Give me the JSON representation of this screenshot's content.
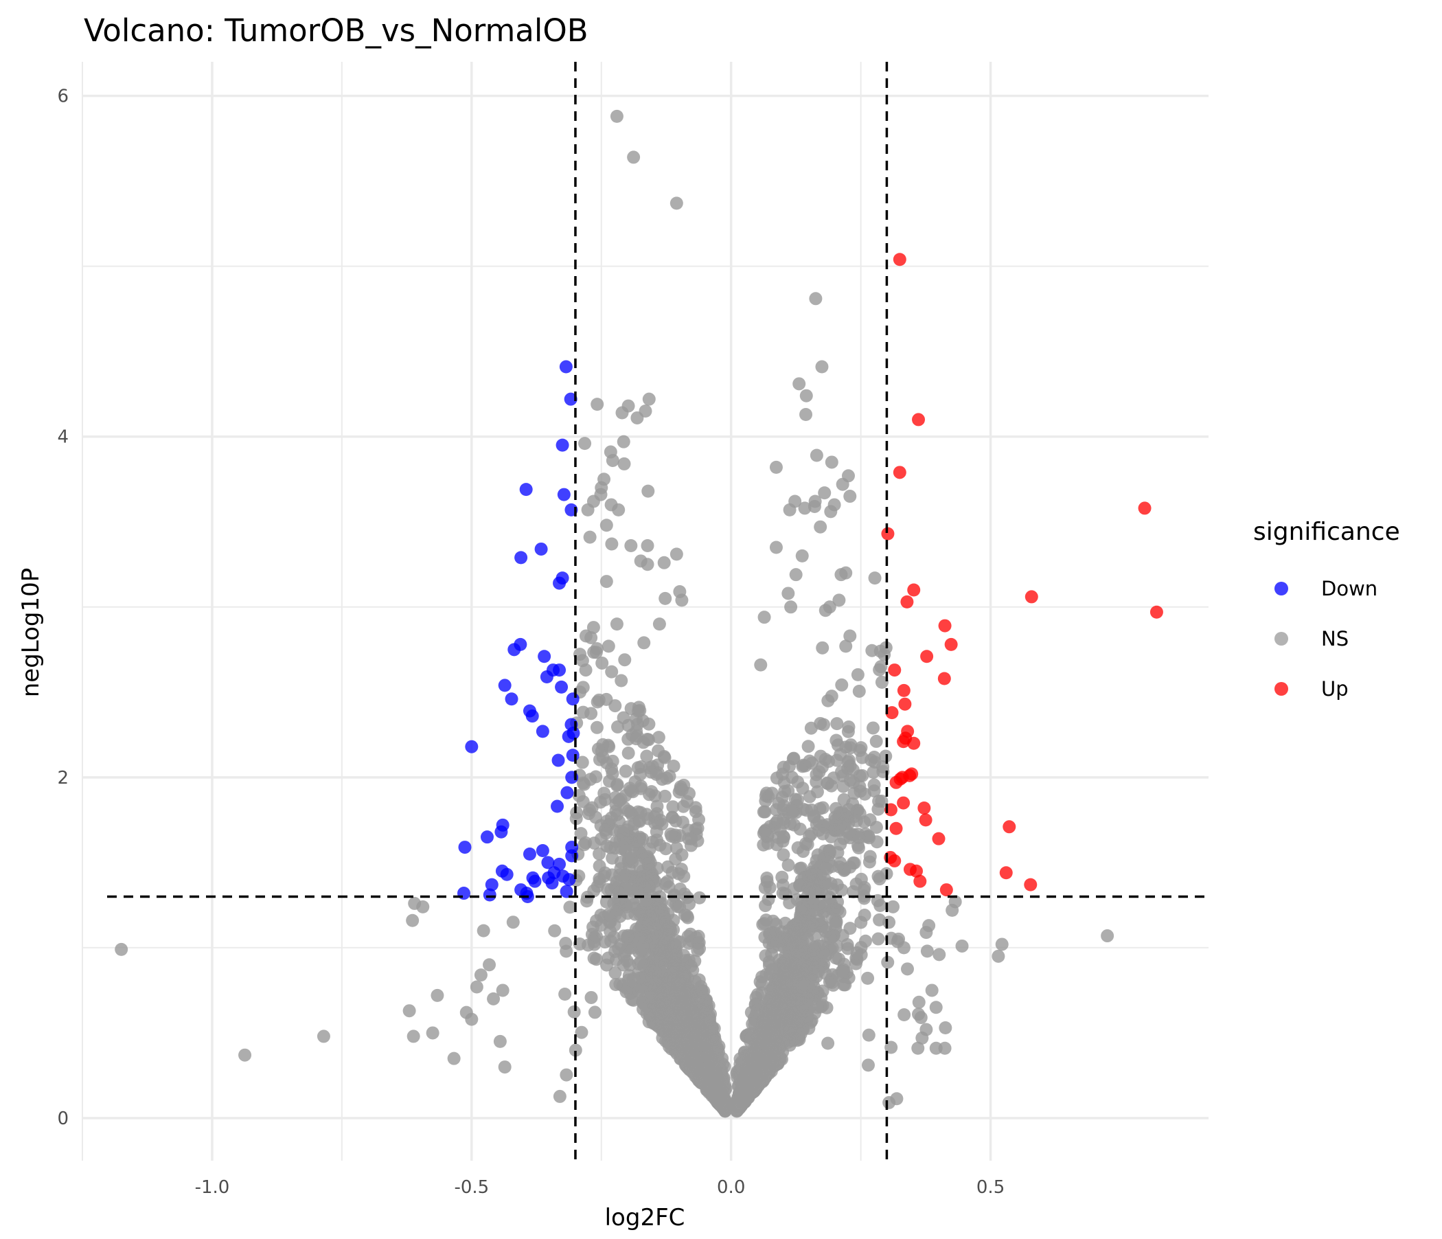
{
  "chart_data": {
    "type": "scatter",
    "title": "Volcano: TumorOB_vs_NormalOB",
    "xlabel": "log2FC",
    "ylabel": "negLog10P",
    "xlim": [
      -1.25,
      0.92
    ],
    "ylim": [
      -0.25,
      6.2
    ],
    "x_ticks": [
      -1.0,
      -0.5,
      0.0,
      0.5
    ],
    "x_tick_labels": [
      "-1.0",
      "-0.5",
      "0.0",
      "0.5"
    ],
    "y_ticks": [
      0,
      2,
      4,
      6
    ],
    "y_tick_labels": [
      "0",
      "2",
      "4",
      "6"
    ],
    "grid": true,
    "thresholds": {
      "log2FC": [
        -0.3,
        0.3
      ],
      "negLog10P": 1.3
    },
    "legend": {
      "title": "significance",
      "position": "right",
      "entries": [
        {
          "label": "Down",
          "color": "#0000ff"
        },
        {
          "label": "NS",
          "color": "#999999"
        },
        {
          "label": "Up",
          "color": "#ff0000"
        }
      ]
    },
    "series": [
      {
        "name": "Down",
        "color": "#0000ff",
        "points": [
          [
            -0.318,
            4.41
          ],
          [
            -0.309,
            4.22
          ],
          [
            -0.325,
            3.95
          ],
          [
            -0.395,
            3.69
          ],
          [
            -0.322,
            3.66
          ],
          [
            -0.308,
            3.57
          ],
          [
            -0.366,
            3.34
          ],
          [
            -0.405,
            3.29
          ],
          [
            -0.325,
            3.17
          ],
          [
            -0.331,
            3.14
          ],
          [
            -0.406,
            2.78
          ],
          [
            -0.418,
            2.75
          ],
          [
            -0.36,
            2.71
          ],
          [
            -0.343,
            2.63
          ],
          [
            -0.331,
            2.63
          ],
          [
            -0.355,
            2.59
          ],
          [
            -0.436,
            2.54
          ],
          [
            -0.327,
            2.53
          ],
          [
            -0.423,
            2.46
          ],
          [
            -0.305,
            2.46
          ],
          [
            -0.388,
            2.39
          ],
          [
            -0.383,
            2.36
          ],
          [
            -0.308,
            2.31
          ],
          [
            -0.304,
            2.26
          ],
          [
            -0.363,
            2.27
          ],
          [
            -0.313,
            2.24
          ],
          [
            -0.5,
            2.18
          ],
          [
            -0.305,
            2.13
          ],
          [
            -0.333,
            2.1
          ],
          [
            -0.307,
            2.0
          ],
          [
            -0.316,
            1.91
          ],
          [
            -0.335,
            1.83
          ],
          [
            -0.44,
            1.72
          ],
          [
            -0.443,
            1.68
          ],
          [
            -0.47,
            1.65
          ],
          [
            -0.513,
            1.59
          ],
          [
            -0.307,
            1.59
          ],
          [
            -0.363,
            1.57
          ],
          [
            -0.388,
            1.55
          ],
          [
            -0.307,
            1.54
          ],
          [
            -0.353,
            1.5
          ],
          [
            -0.331,
            1.49
          ],
          [
            -0.441,
            1.45
          ],
          [
            -0.432,
            1.43
          ],
          [
            -0.341,
            1.44
          ],
          [
            -0.324,
            1.42
          ],
          [
            -0.382,
            1.41
          ],
          [
            -0.352,
            1.41
          ],
          [
            -0.312,
            1.4
          ],
          [
            -0.378,
            1.39
          ],
          [
            -0.345,
            1.38
          ],
          [
            -0.461,
            1.37
          ],
          [
            -0.405,
            1.34
          ],
          [
            -0.394,
            1.32
          ],
          [
            -0.317,
            1.33
          ],
          [
            -0.465,
            1.31
          ],
          [
            -0.515,
            1.32
          ],
          [
            -0.392,
            1.3
          ]
        ]
      },
      {
        "name": "Up",
        "color": "#ff0000",
        "points": [
          [
            0.325,
            5.04
          ],
          [
            0.361,
            4.1
          ],
          [
            0.325,
            3.79
          ],
          [
            0.797,
            3.58
          ],
          [
            0.302,
            3.43
          ],
          [
            0.579,
            3.06
          ],
          [
            0.352,
            3.1
          ],
          [
            0.339,
            3.03
          ],
          [
            0.82,
            2.97
          ],
          [
            0.412,
            2.89
          ],
          [
            0.424,
            2.78
          ],
          [
            0.377,
            2.71
          ],
          [
            0.315,
            2.63
          ],
          [
            0.411,
            2.58
          ],
          [
            0.333,
            2.51
          ],
          [
            0.335,
            2.43
          ],
          [
            0.31,
            2.38
          ],
          [
            0.34,
            2.27
          ],
          [
            0.336,
            2.23
          ],
          [
            0.332,
            2.21
          ],
          [
            0.352,
            2.2
          ],
          [
            0.348,
            2.02
          ],
          [
            0.344,
            2.01
          ],
          [
            0.33,
            2.0
          ],
          [
            0.326,
            1.99
          ],
          [
            0.318,
            1.97
          ],
          [
            0.332,
            1.85
          ],
          [
            0.372,
            1.82
          ],
          [
            0.308,
            1.81
          ],
          [
            0.375,
            1.75
          ],
          [
            0.536,
            1.71
          ],
          [
            0.318,
            1.7
          ],
          [
            0.4,
            1.64
          ],
          [
            0.307,
            1.53
          ],
          [
            0.315,
            1.51
          ],
          [
            0.345,
            1.46
          ],
          [
            0.357,
            1.45
          ],
          [
            0.53,
            1.44
          ],
          [
            0.364,
            1.39
          ],
          [
            0.577,
            1.37
          ],
          [
            0.415,
            1.34
          ]
        ]
      },
      {
        "name": "NS",
        "color": "#999999",
        "notable_points": [
          [
            -0.22,
            5.88
          ],
          [
            -0.188,
            5.64
          ],
          [
            -0.105,
            5.37
          ],
          [
            0.163,
            4.81
          ],
          [
            0.175,
            4.41
          ],
          [
            0.131,
            4.31
          ],
          [
            0.145,
            4.24
          ],
          [
            -0.158,
            4.22
          ],
          [
            -0.258,
            4.19
          ],
          [
            -0.198,
            4.18
          ],
          [
            -0.21,
            4.14
          ],
          [
            -0.165,
            4.15
          ],
          [
            -0.181,
            4.11
          ],
          [
            0.144,
            4.13
          ],
          [
            -0.282,
            3.96
          ],
          [
            -0.207,
            3.97
          ],
          [
            -0.232,
            3.91
          ],
          [
            0.165,
            3.89
          ],
          [
            -0.228,
            3.86
          ],
          [
            -0.206,
            3.84
          ],
          [
            0.194,
            3.85
          ],
          [
            0.087,
            3.82
          ],
          [
            0.226,
            3.77
          ],
          [
            -0.245,
            3.75
          ],
          [
            0.215,
            3.72
          ],
          [
            -0.25,
            3.7
          ],
          [
            -0.16,
            3.68
          ],
          [
            0.229,
            3.65
          ],
          [
            -0.251,
            3.66
          ],
          [
            0.18,
            3.67
          ],
          [
            -0.265,
            3.62
          ],
          [
            0.162,
            3.62
          ],
          [
            0.123,
            3.62
          ],
          [
            -0.231,
            3.6
          ],
          [
            0.199,
            3.6
          ],
          [
            -0.276,
            3.57
          ],
          [
            -0.217,
            3.57
          ],
          [
            0.161,
            3.59
          ],
          [
            0.142,
            3.58
          ],
          [
            0.113,
            3.57
          ],
          [
            0.192,
            3.56
          ],
          [
            -0.24,
            3.48
          ],
          [
            0.172,
            3.47
          ],
          [
            -0.272,
            3.41
          ],
          [
            -0.23,
            3.37
          ],
          [
            -0.161,
            3.36
          ],
          [
            -0.193,
            3.36
          ],
          [
            0.087,
            3.35
          ],
          [
            -0.105,
            3.31
          ],
          [
            0.137,
            3.3
          ],
          [
            -0.174,
            3.27
          ],
          [
            -0.129,
            3.26
          ],
          [
            -0.161,
            3.25
          ],
          [
            0.221,
            3.2
          ],
          [
            0.212,
            3.19
          ],
          [
            0.125,
            3.19
          ],
          [
            -0.24,
            3.15
          ],
          [
            0.277,
            3.17
          ],
          [
            -0.099,
            3.09
          ],
          [
            -0.127,
            3.05
          ],
          [
            0.11,
            3.08
          ],
          [
            0.208,
            3.04
          ],
          [
            -0.095,
            3.04
          ],
          [
            0.115,
            3.0
          ],
          [
            0.19,
            3.0
          ],
          [
            0.182,
            2.98
          ],
          [
            -0.265,
            2.88
          ],
          [
            -0.22,
            2.9
          ],
          [
            -0.138,
            2.9
          ],
          [
            0.064,
            2.94
          ],
          [
            0.229,
            2.83
          ],
          [
            -0.27,
            2.82
          ],
          [
            -0.168,
            2.79
          ],
          [
            -0.236,
            2.77
          ],
          [
            0.221,
            2.77
          ],
          [
            0.176,
            2.76
          ],
          [
            -0.28,
            2.63
          ],
          [
            -0.205,
            2.69
          ],
          [
            0.295,
            2.72
          ],
          [
            0.057,
            2.66
          ],
          [
            -0.61,
            1.26
          ],
          [
            -0.594,
            1.24
          ],
          [
            -0.614,
            1.16
          ],
          [
            -0.477,
            1.1
          ],
          [
            -0.42,
            1.15
          ],
          [
            -1.175,
            0.99
          ],
          [
            -0.466,
            0.9
          ],
          [
            -0.482,
            0.84
          ],
          [
            -0.49,
            0.77
          ],
          [
            -0.458,
            0.7
          ],
          [
            -0.44,
            0.75
          ],
          [
            -0.566,
            0.72
          ],
          [
            -0.62,
            0.63
          ],
          [
            -0.612,
            0.48
          ],
          [
            -0.575,
            0.5
          ],
          [
            -0.51,
            0.62
          ],
          [
            -0.5,
            0.58
          ],
          [
            -0.445,
            0.45
          ],
          [
            -0.436,
            0.3
          ],
          [
            -0.534,
            0.35
          ],
          [
            -0.785,
            0.48
          ],
          [
            -0.937,
            0.37
          ],
          [
            0.426,
            1.22
          ],
          [
            0.432,
            1.27
          ],
          [
            0.381,
            1.13
          ],
          [
            0.376,
            1.09
          ],
          [
            0.378,
            0.98
          ],
          [
            0.401,
            0.96
          ],
          [
            0.445,
            1.01
          ],
          [
            0.515,
            0.95
          ],
          [
            0.522,
            1.02
          ],
          [
            0.725,
            1.07
          ],
          [
            0.387,
            0.75
          ],
          [
            0.362,
            0.68
          ],
          [
            0.395,
            0.65
          ],
          [
            0.413,
            0.53
          ],
          [
            0.361,
            0.61
          ],
          [
            0.366,
            0.59
          ],
          [
            0.376,
            0.52
          ],
          [
            0.412,
            0.41
          ],
          [
            0.395,
            0.41
          ],
          [
            0.36,
            0.41
          ],
          [
            0.368,
            0.47
          ]
        ]
      }
    ]
  }
}
